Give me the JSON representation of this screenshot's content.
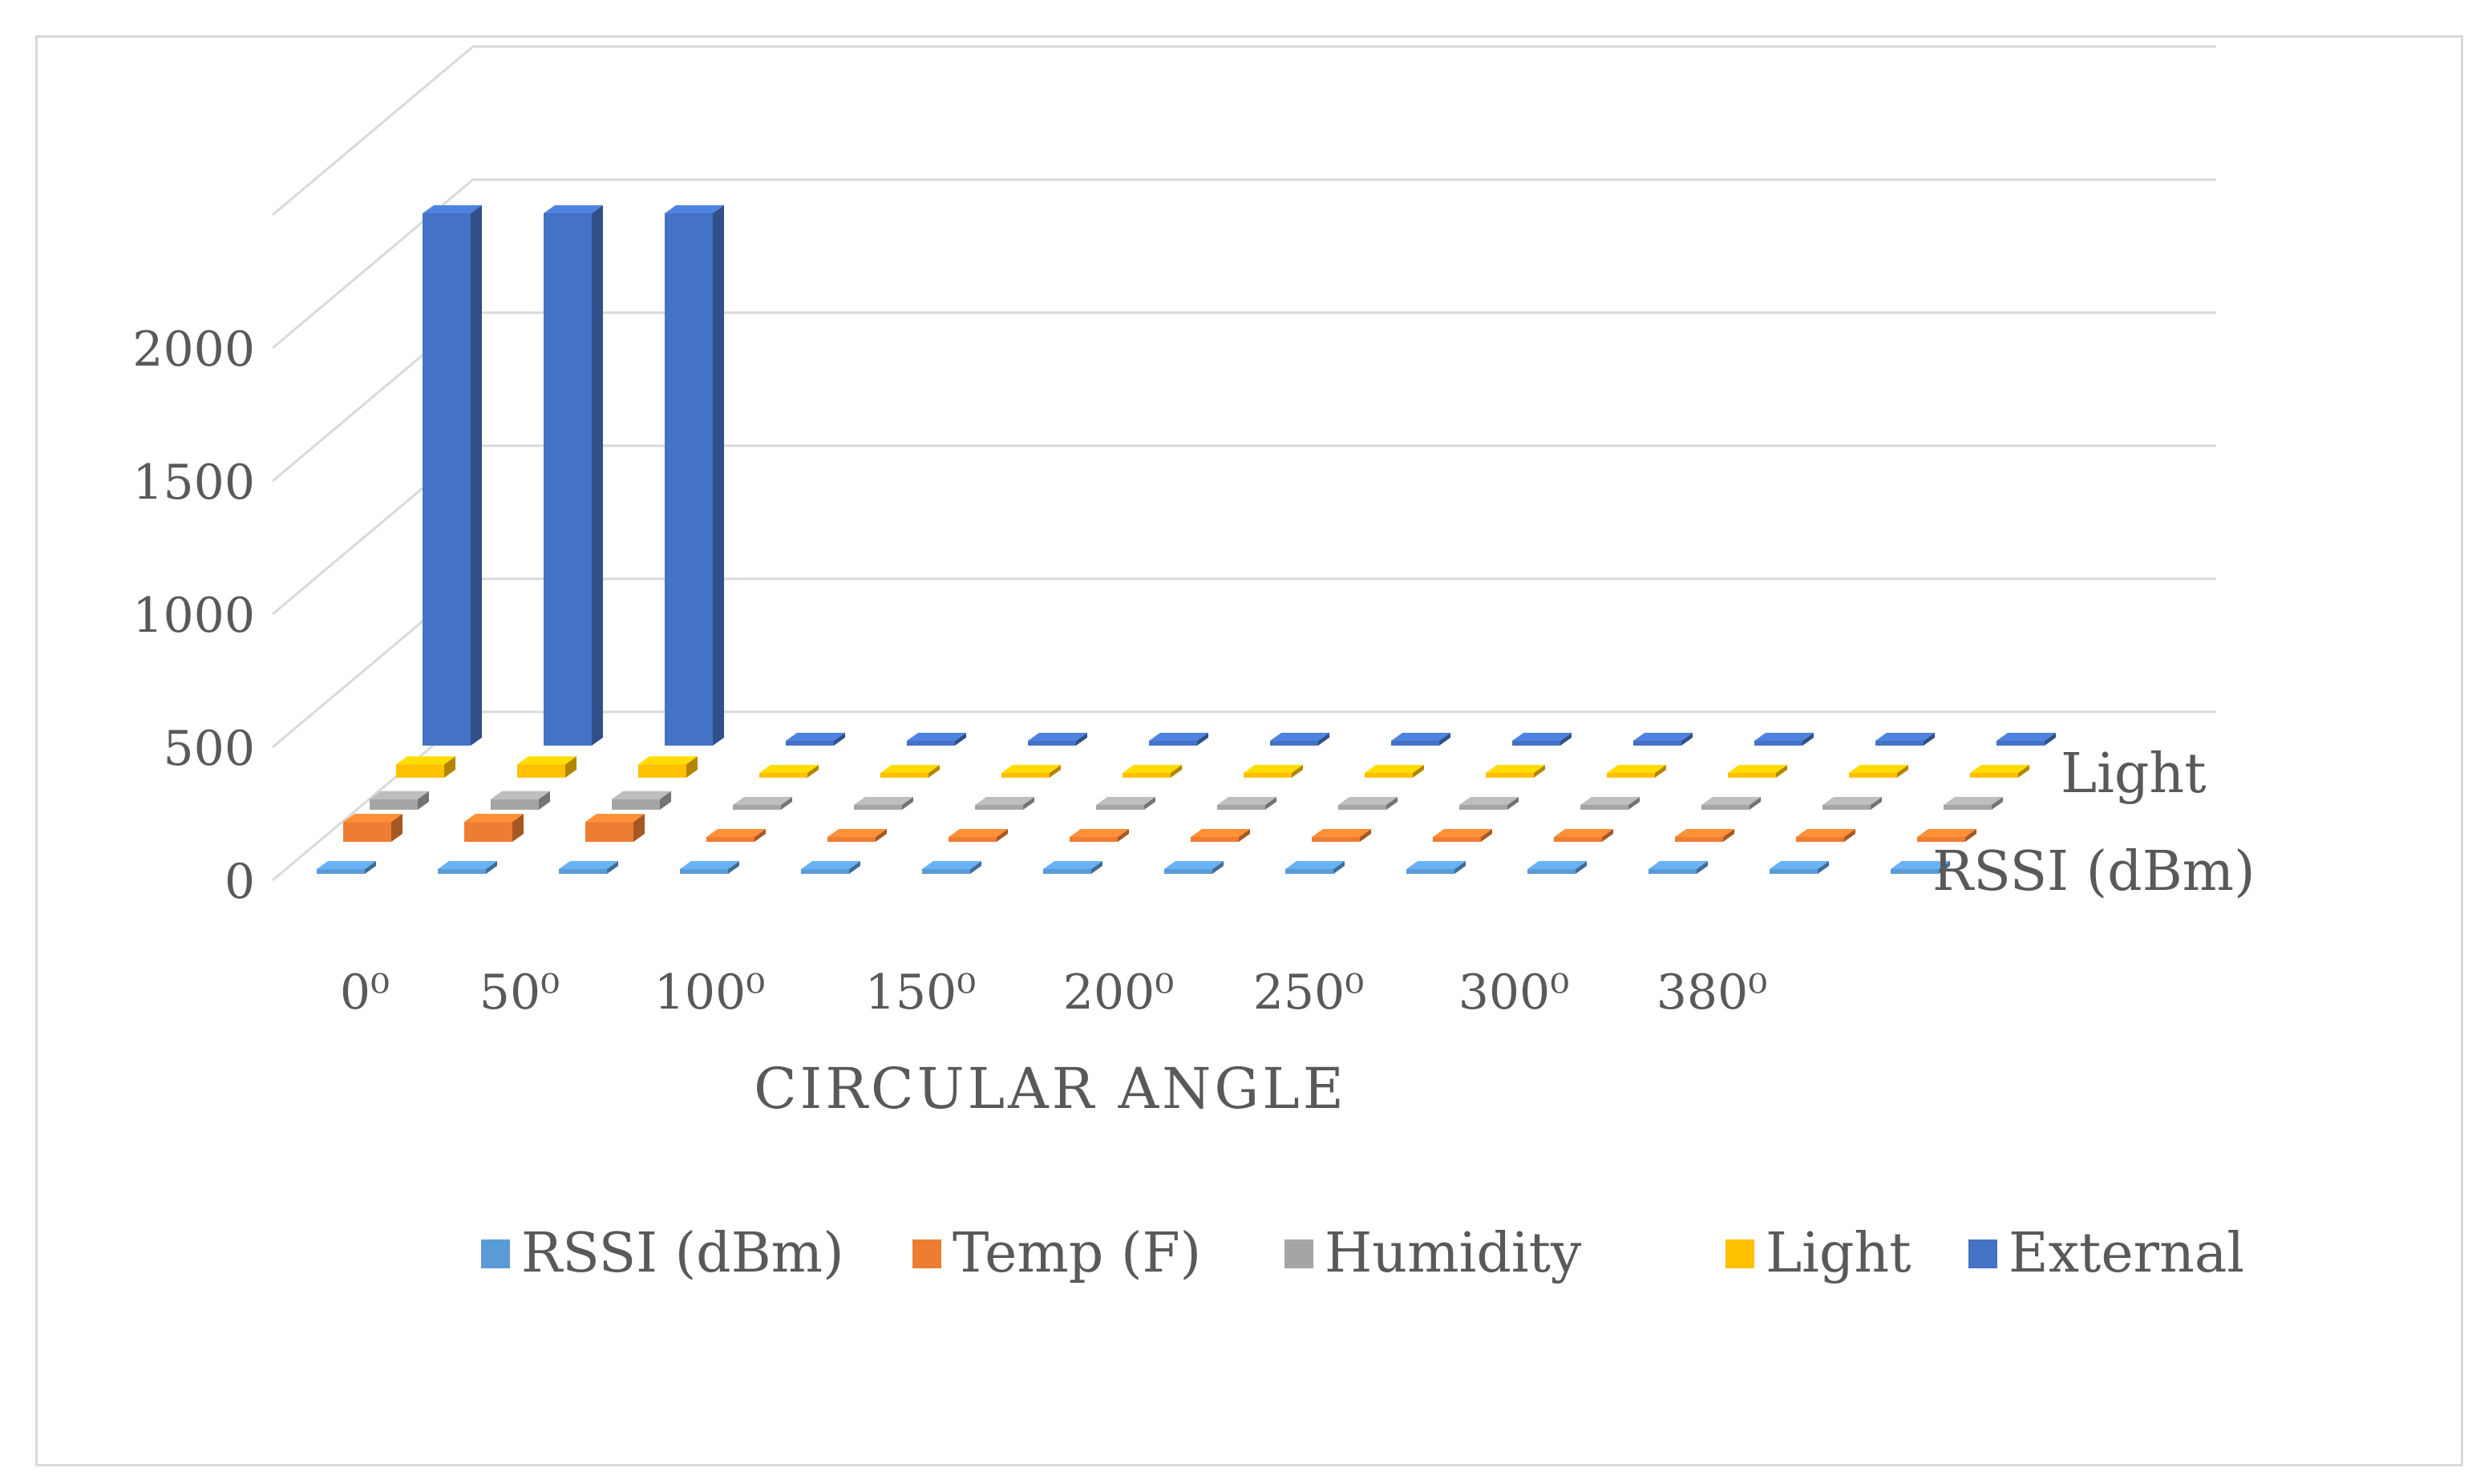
{
  "chart_data": {
    "type": "bar",
    "subtype": "3d-column",
    "xlabel": "CIRCULAR ANGLE",
    "ylim": [
      0,
      2500
    ],
    "yticks": [
      0,
      500,
      1000,
      1500,
      2000
    ],
    "grid": true,
    "legend_position": "bottom",
    "categories": [
      "0⁰",
      "50⁰",
      "100⁰",
      "150⁰",
      "200⁰",
      "250⁰",
      "300⁰",
      "380⁰",
      "",
      "",
      "",
      "",
      "",
      ""
    ],
    "depth_labels": [
      "RSSI (dBm)",
      "Light"
    ],
    "series": [
      {
        "name": "RSSI (dBm)",
        "color": "#5b9bd5",
        "values": [
          -50,
          -50,
          -50,
          -50,
          -50,
          -50,
          -50,
          -50,
          -50,
          -50,
          -50,
          -50,
          -50,
          -50
        ]
      },
      {
        "name": "Temp (F)",
        "color": "#ed7d31",
        "values": [
          75,
          75,
          75,
          0,
          0,
          0,
          0,
          0,
          0,
          0,
          0,
          0,
          0,
          0
        ]
      },
      {
        "name": "Humidity",
        "color": "#a5a5a5",
        "values": [
          40,
          40,
          40,
          0,
          0,
          0,
          0,
          0,
          0,
          0,
          0,
          0,
          0,
          0
        ]
      },
      {
        "name": "Light",
        "color": "#ffc000",
        "values": [
          50,
          50,
          50,
          0,
          0,
          0,
          0,
          0,
          0,
          0,
          0,
          0,
          0,
          0
        ]
      },
      {
        "name": "External",
        "color": "#4472c4",
        "values": [
          2000,
          2000,
          2000,
          0,
          0,
          0,
          0,
          0,
          0,
          0,
          0,
          0,
          0,
          0
        ]
      }
    ]
  }
}
